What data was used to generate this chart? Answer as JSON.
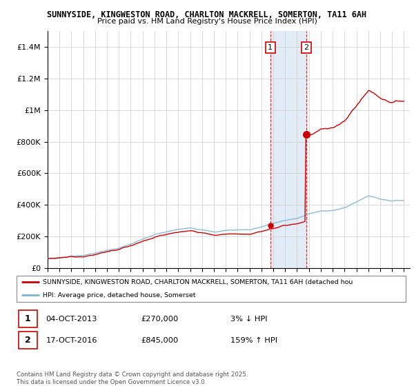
{
  "title1": "SUNNYSIDE, KINGWESTON ROAD, CHARLTON MACKRELL, SOMERTON, TA11 6AH",
  "title2": "Price paid vs. HM Land Registry's House Price Index (HPI)",
  "ylim": [
    0,
    1500000
  ],
  "yticks": [
    0,
    200000,
    400000,
    600000,
    800000,
    1000000,
    1200000,
    1400000
  ],
  "ytick_labels": [
    "£0",
    "£200K",
    "£400K",
    "£600K",
    "£800K",
    "£1M",
    "£1.2M",
    "£1.4M"
  ],
  "xlim_start": 1995.0,
  "xlim_end": 2025.5,
  "background_color": "#ffffff",
  "plot_bg_color": "#ffffff",
  "grid_color": "#cccccc",
  "sale1_date": 2013.75,
  "sale1_price": 270000,
  "sale2_date": 2016.79,
  "sale2_price": 845000,
  "sale_color": "#cc0000",
  "hpi_color": "#7fb3d3",
  "legend_label1": "SUNNYSIDE, KINGWESTON ROAD, CHARLTON MACKRELL, SOMERTON, TA11 6AH (detached hou",
  "legend_label2": "HPI: Average price, detached house, Somerset",
  "annotation1_label": "1",
  "annotation1_date": "04-OCT-2013",
  "annotation1_price": "£270,000",
  "annotation1_hpi": "3% ↓ HPI",
  "annotation2_label": "2",
  "annotation2_date": "17-OCT-2016",
  "annotation2_price": "£845,000",
  "annotation2_hpi": "159% ↑ HPI",
  "copyright_text": "Contains HM Land Registry data © Crown copyright and database right 2025.\nThis data is licensed under the Open Government Licence v3.0."
}
